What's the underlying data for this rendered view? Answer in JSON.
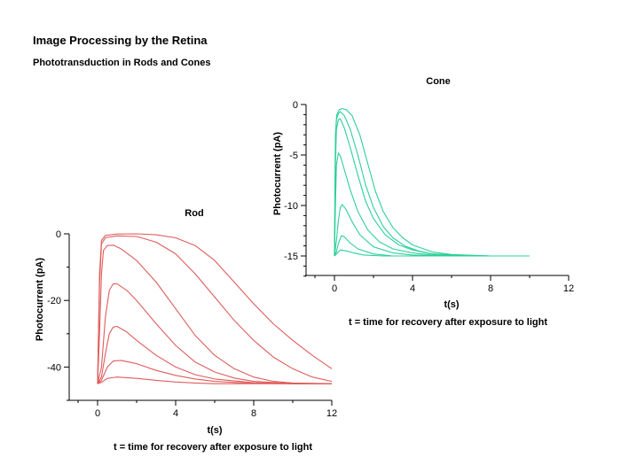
{
  "page": {
    "title": "Image Processing by the Retina",
    "subtitle": "Phototransduction in Rods and Cones"
  },
  "colors": {
    "rod": "#e05c5c",
    "cone": "#2ecf9a",
    "axis": "#000000"
  },
  "chart_data": [
    {
      "id": "rod",
      "type": "line",
      "title": "Rod",
      "xlabel": "t(s)",
      "ylabel": "Photocurrent (pA)",
      "caption": "t = time for recovery after exposure to light",
      "xlim": [
        -1.5,
        12
      ],
      "ylim": [
        -50,
        0
      ],
      "xticks": [
        0,
        4,
        8,
        12
      ],
      "yticks": [
        0,
        -20,
        -40
      ],
      "series": [
        {
          "points": [
            [
              0,
              -45
            ],
            [
              0.2,
              -44.6
            ],
            [
              0.5,
              -43.4
            ],
            [
              1,
              -43
            ],
            [
              2,
              -43.4
            ],
            [
              3,
              -44
            ],
            [
              4,
              -44.5
            ],
            [
              5,
              -44.8
            ],
            [
              6,
              -45
            ],
            [
              8,
              -45
            ],
            [
              10,
              -45
            ],
            [
              12,
              -45
            ]
          ]
        },
        {
          "points": [
            [
              0,
              -45
            ],
            [
              0.2,
              -44
            ],
            [
              0.5,
              -40
            ],
            [
              0.8,
              -38.2
            ],
            [
              1.2,
              -38
            ],
            [
              2,
              -39
            ],
            [
              3,
              -41
            ],
            [
              4,
              -42.5
            ],
            [
              5,
              -43.6
            ],
            [
              6,
              -44.3
            ],
            [
              8,
              -44.9
            ],
            [
              10,
              -45
            ],
            [
              12,
              -45
            ]
          ]
        },
        {
          "points": [
            [
              0,
              -45
            ],
            [
              0.2,
              -43
            ],
            [
              0.4,
              -36
            ],
            [
              0.6,
              -30
            ],
            [
              0.8,
              -28
            ],
            [
              1,
              -27.8
            ],
            [
              1.5,
              -29.5
            ],
            [
              2,
              -32
            ],
            [
              3,
              -36.5
            ],
            [
              4,
              -40
            ],
            [
              5,
              -42.3
            ],
            [
              6,
              -43.6
            ],
            [
              8,
              -44.7
            ],
            [
              10,
              -45
            ],
            [
              12,
              -45
            ]
          ]
        },
        {
          "points": [
            [
              0,
              -45
            ],
            [
              0.2,
              -40
            ],
            [
              0.4,
              -25
            ],
            [
              0.6,
              -17
            ],
            [
              0.8,
              -15
            ],
            [
              1,
              -15
            ],
            [
              1.5,
              -17
            ],
            [
              2,
              -20
            ],
            [
              3,
              -27
            ],
            [
              4,
              -33.5
            ],
            [
              5,
              -38.5
            ],
            [
              6,
              -41.5
            ],
            [
              7,
              -43.3
            ],
            [
              8,
              -44.3
            ],
            [
              10,
              -45
            ],
            [
              12,
              -45
            ]
          ]
        },
        {
          "points": [
            [
              0,
              -45
            ],
            [
              0.1,
              -30
            ],
            [
              0.2,
              -12
            ],
            [
              0.3,
              -5
            ],
            [
              0.5,
              -3.5
            ],
            [
              0.8,
              -3.4
            ],
            [
              1.2,
              -4.5
            ],
            [
              2,
              -8
            ],
            [
              3,
              -14.5
            ],
            [
              4,
              -22.5
            ],
            [
              5,
              -30.5
            ],
            [
              6,
              -36.5
            ],
            [
              7,
              -40.5
            ],
            [
              8,
              -43
            ],
            [
              9,
              -44.3
            ],
            [
              10,
              -44.8
            ],
            [
              12,
              -45
            ]
          ]
        },
        {
          "points": [
            [
              0,
              -45
            ],
            [
              0.1,
              -15
            ],
            [
              0.2,
              -3
            ],
            [
              0.4,
              -1.2
            ],
            [
              1,
              -0.6
            ],
            [
              2,
              -0.8
            ],
            [
              3,
              -2.5
            ],
            [
              4,
              -6
            ],
            [
              5,
              -12
            ],
            [
              6,
              -19
            ],
            [
              7,
              -26
            ],
            [
              8,
              -32
            ],
            [
              9,
              -37
            ],
            [
              10,
              -40.5
            ],
            [
              11,
              -43
            ],
            [
              12,
              -44.3
            ]
          ]
        },
        {
          "points": [
            [
              0,
              -45
            ],
            [
              0.1,
              -12
            ],
            [
              0.2,
              -2
            ],
            [
              0.4,
              -0.5
            ],
            [
              1,
              -0.05
            ],
            [
              2,
              0
            ],
            [
              3,
              -0.3
            ],
            [
              4,
              -1.2
            ],
            [
              5,
              -3.5
            ],
            [
              6,
              -8
            ],
            [
              7,
              -14.5
            ],
            [
              8,
              -21
            ],
            [
              9,
              -27
            ],
            [
              10,
              -32
            ],
            [
              11,
              -36.5
            ],
            [
              12,
              -40.5
            ]
          ]
        }
      ]
    },
    {
      "id": "cone",
      "type": "line",
      "title": "Cone",
      "xlabel": "t(s)",
      "ylabel": "Photocurrent (pA)",
      "caption": "t = time for recovery after exposure to light",
      "xlim": [
        -1.5,
        12
      ],
      "ylim": [
        -17,
        0
      ],
      "xticks": [
        0,
        4,
        8,
        12
      ],
      "yticks": [
        0,
        -5,
        -10,
        -15
      ],
      "series": [
        {
          "points": [
            [
              0,
              -15
            ],
            [
              0.1,
              -14.8
            ],
            [
              0.3,
              -14.4
            ],
            [
              0.6,
              -14.5
            ],
            [
              1,
              -14.7
            ],
            [
              1.5,
              -14.9
            ],
            [
              2.5,
              -15
            ],
            [
              4,
              -15
            ],
            [
              10,
              -15
            ]
          ]
        },
        {
          "points": [
            [
              0,
              -15
            ],
            [
              0.1,
              -14.6
            ],
            [
              0.2,
              -13.8
            ],
            [
              0.35,
              -13
            ],
            [
              0.5,
              -13.1
            ],
            [
              0.8,
              -13.7
            ],
            [
              1.2,
              -14.3
            ],
            [
              2,
              -14.8
            ],
            [
              3,
              -15
            ],
            [
              10,
              -15
            ]
          ]
        },
        {
          "points": [
            [
              0,
              -15
            ],
            [
              0.1,
              -13.5
            ],
            [
              0.2,
              -11.5
            ],
            [
              0.3,
              -10.2
            ],
            [
              0.4,
              -9.9
            ],
            [
              0.6,
              -10.4
            ],
            [
              0.9,
              -11.6
            ],
            [
              1.3,
              -12.9
            ],
            [
              2,
              -14.1
            ],
            [
              3,
              -14.7
            ],
            [
              4,
              -14.9
            ],
            [
              6,
              -15
            ],
            [
              10,
              -15
            ]
          ]
        },
        {
          "points": [
            [
              0,
              -15
            ],
            [
              0.05,
              -10
            ],
            [
              0.1,
              -6
            ],
            [
              0.2,
              -4.8
            ],
            [
              0.3,
              -5.1
            ],
            [
              0.5,
              -6.4
            ],
            [
              0.8,
              -8.4
            ],
            [
              1.2,
              -10.6
            ],
            [
              1.7,
              -12.4
            ],
            [
              2.3,
              -13.6
            ],
            [
              3,
              -14.3
            ],
            [
              4,
              -14.7
            ],
            [
              5,
              -14.9
            ],
            [
              7,
              -15
            ],
            [
              10,
              -15
            ]
          ]
        },
        {
          "points": [
            [
              0,
              -15
            ],
            [
              0.05,
              -6
            ],
            [
              0.1,
              -2.5
            ],
            [
              0.2,
              -1.5
            ],
            [
              0.3,
              -1.4
            ],
            [
              0.5,
              -2.3
            ],
            [
              0.8,
              -4.2
            ],
            [
              1.2,
              -7
            ],
            [
              1.6,
              -9.6
            ],
            [
              2,
              -11.3
            ],
            [
              2.6,
              -12.9
            ],
            [
              3.3,
              -13.9
            ],
            [
              4,
              -14.4
            ],
            [
              5,
              -14.8
            ],
            [
              6,
              -14.9
            ],
            [
              8,
              -15
            ],
            [
              10,
              -15
            ]
          ]
        },
        {
          "points": [
            [
              0,
              -15
            ],
            [
              0.05,
              -4
            ],
            [
              0.1,
              -1.5
            ],
            [
              0.2,
              -0.9
            ],
            [
              0.3,
              -0.7
            ],
            [
              0.5,
              -1.1
            ],
            [
              0.8,
              -2.4
            ],
            [
              1.2,
              -5
            ],
            [
              1.6,
              -8
            ],
            [
              2,
              -10.2
            ],
            [
              2.5,
              -12.1
            ],
            [
              3,
              -13.2
            ],
            [
              3.6,
              -14
            ],
            [
              4.3,
              -14.5
            ],
            [
              5,
              -14.8
            ],
            [
              6,
              -14.9
            ],
            [
              8,
              -15
            ],
            [
              10,
              -15
            ]
          ]
        },
        {
          "points": [
            [
              0,
              -15
            ],
            [
              0.05,
              -3
            ],
            [
              0.12,
              -1
            ],
            [
              0.25,
              -0.5
            ],
            [
              0.4,
              -0.4
            ],
            [
              0.6,
              -0.5
            ],
            [
              0.9,
              -1.1
            ],
            [
              1.3,
              -3
            ],
            [
              1.7,
              -5.8
            ],
            [
              2.1,
              -8.6
            ],
            [
              2.5,
              -10.6
            ],
            [
              3,
              -12.2
            ],
            [
              3.5,
              -13.2
            ],
            [
              4,
              -13.9
            ],
            [
              5,
              -14.6
            ],
            [
              6,
              -14.85
            ],
            [
              8,
              -15
            ],
            [
              10,
              -15
            ]
          ]
        }
      ]
    }
  ]
}
